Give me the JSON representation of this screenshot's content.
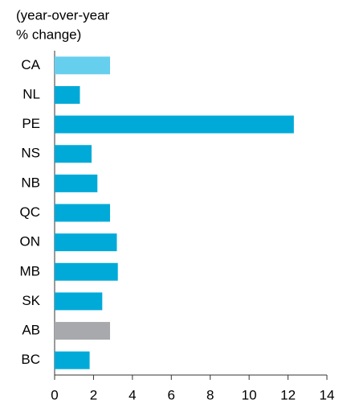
{
  "chart_data": {
    "type": "bar",
    "orientation": "horizontal",
    "title": [
      "(year-over-year",
      "% change)"
    ],
    "categories": [
      "CA",
      "NL",
      "PE",
      "NS",
      "NB",
      "QC",
      "ON",
      "MB",
      "SK",
      "AB",
      "BC"
    ],
    "values": [
      2.85,
      1.3,
      12.3,
      1.9,
      2.2,
      2.85,
      3.2,
      3.25,
      2.45,
      2.85,
      1.8
    ],
    "colors": [
      "#66cfee",
      "#00aad8",
      "#00aad8",
      "#00aad8",
      "#00aad8",
      "#00aad8",
      "#00aad8",
      "#00aad8",
      "#00aad8",
      "#a7a9ac",
      "#00aad8"
    ],
    "xlim": [
      0,
      14
    ],
    "xticks": [
      0,
      2,
      4,
      6,
      8,
      10,
      12,
      14
    ],
    "grid": false
  }
}
